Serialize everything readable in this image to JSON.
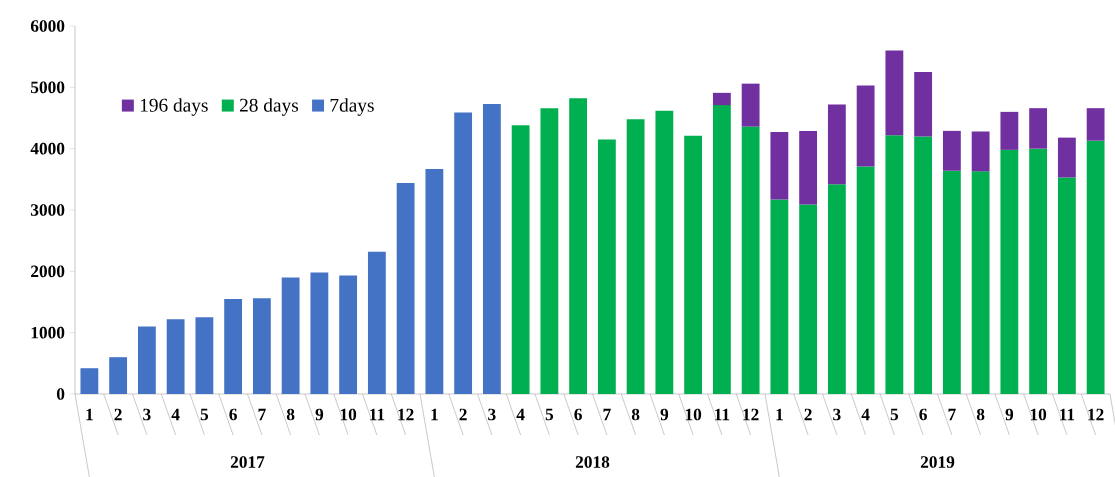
{
  "chart_data": {
    "type": "bar",
    "stacked": true,
    "categories": [
      "1",
      "2",
      "3",
      "4",
      "5",
      "6",
      "7",
      "8",
      "9",
      "10",
      "11",
      "12",
      "1",
      "2",
      "3",
      "4",
      "5",
      "6",
      "7",
      "8",
      "9",
      "10",
      "11",
      "12",
      "1",
      "2",
      "3",
      "4",
      "5",
      "6",
      "7",
      "8",
      "9",
      "10",
      "11",
      "12"
    ],
    "series": [
      {
        "name": "7days",
        "color": "#4472c4",
        "values": [
          420,
          600,
          1100,
          1220,
          1250,
          1550,
          1560,
          1900,
          1980,
          1930,
          2320,
          3440,
          3670,
          4590,
          4730,
          null,
          null,
          null,
          null,
          null,
          null,
          null,
          null,
          null,
          null,
          null,
          null,
          null,
          null,
          null,
          null,
          null,
          null,
          null,
          null,
          null
        ]
      },
      {
        "name": "28 days",
        "color": "#00b050",
        "values": [
          null,
          null,
          null,
          null,
          null,
          null,
          null,
          null,
          null,
          null,
          null,
          null,
          null,
          null,
          null,
          4380,
          4660,
          4820,
          4150,
          4480,
          4620,
          4210,
          4710,
          4360,
          3170,
          3090,
          3420,
          3710,
          4220,
          4200,
          3640,
          3630,
          3980,
          4000,
          3530,
          4130
        ]
      },
      {
        "name": "196 days",
        "color": "#7030a0",
        "values": [
          null,
          null,
          null,
          null,
          null,
          null,
          null,
          null,
          null,
          null,
          null,
          null,
          null,
          null,
          null,
          null,
          null,
          null,
          null,
          null,
          null,
          null,
          200,
          700,
          1100,
          1200,
          1300,
          1320,
          1380,
          1050,
          650,
          650,
          620,
          660,
          650,
          530
        ]
      }
    ],
    "ylim": [
      0,
      6000
    ],
    "yticks": [
      0,
      1000,
      2000,
      3000,
      4000,
      5000,
      6000
    ],
    "legend": "top left",
    "annotations": [
      "2017",
      "2018",
      "2019"
    ]
  }
}
